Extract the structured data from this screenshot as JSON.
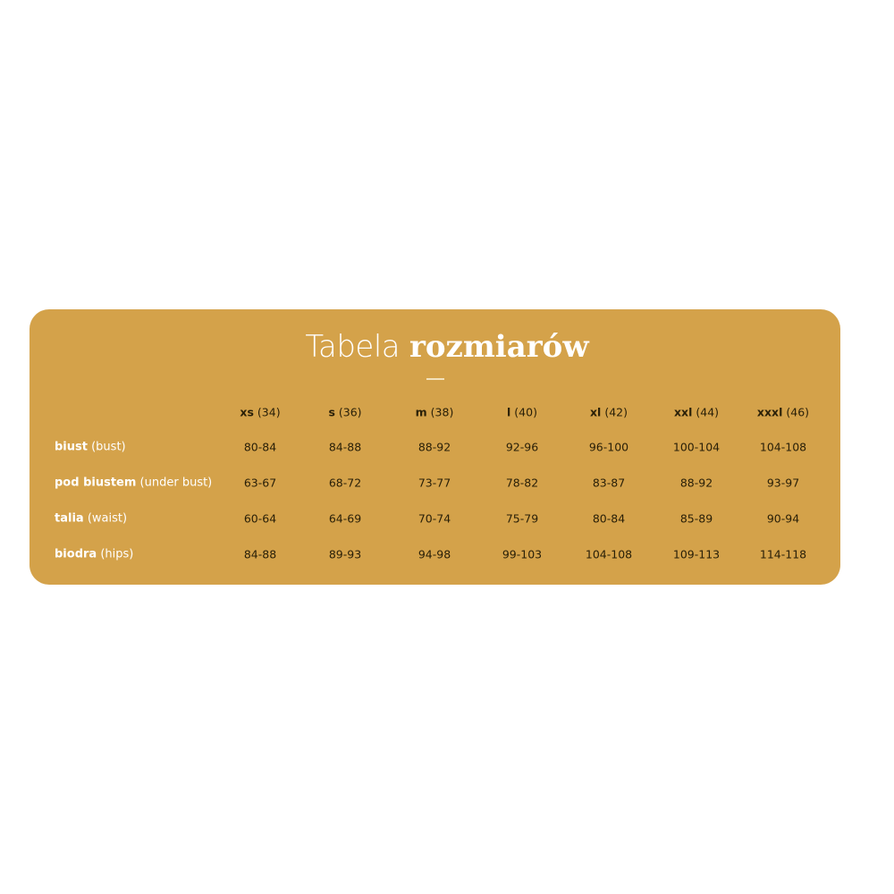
{
  "title": {
    "regular": "Tabela",
    "bold": "rozmiarów"
  },
  "colors": {
    "card_background": "#d4a24a",
    "label_text": "#ffffff",
    "value_text": "#2a2008"
  },
  "columns": [
    {
      "size": "xs",
      "eu": "(34)"
    },
    {
      "size": "s",
      "eu": "(36)"
    },
    {
      "size": "m",
      "eu": "(38)"
    },
    {
      "size": "l",
      "eu": "(40)"
    },
    {
      "size": "xl",
      "eu": "(42)"
    },
    {
      "size": "xxl",
      "eu": "(44)"
    },
    {
      "size": "xxxl",
      "eu": "(46)"
    }
  ],
  "rows": [
    {
      "label": "biust",
      "translation": "(bust)",
      "values": [
        "80-84",
        "84-88",
        "88-92",
        "92-96",
        "96-100",
        "100-104",
        "104-108"
      ]
    },
    {
      "label": "pod biustem",
      "translation": "(under bust)",
      "values": [
        "63-67",
        "68-72",
        "73-77",
        "78-82",
        "83-87",
        "88-92",
        "93-97"
      ]
    },
    {
      "label": "talia",
      "translation": "(waist)",
      "values": [
        "60-64",
        "64-69",
        "70-74",
        "75-79",
        "80-84",
        "85-89",
        "90-94"
      ]
    },
    {
      "label": "biodra",
      "translation": "(hips)",
      "values": [
        "84-88",
        "89-93",
        "94-98",
        "99-103",
        "104-108",
        "109-113",
        "114-118"
      ]
    }
  ]
}
